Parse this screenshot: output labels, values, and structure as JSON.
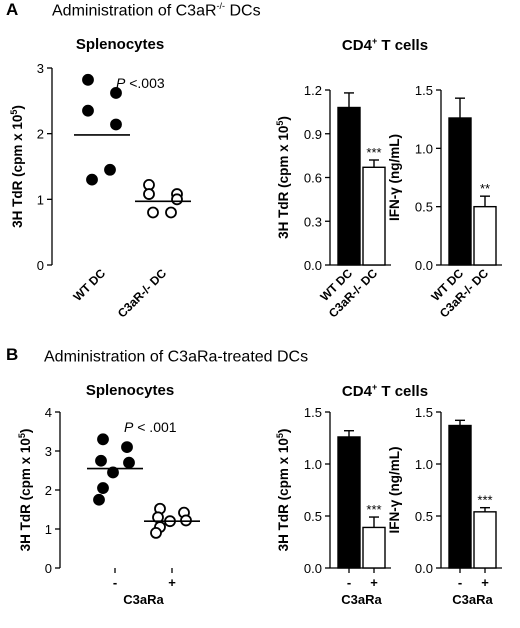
{
  "panels": [
    {
      "letter": "A",
      "title_main": "Administration of C3aR",
      "title_sup": "-/-",
      "title_end": " DCs",
      "left_title": "Splenocytes",
      "right_title_main": "CD4",
      "right_title_sup": "+",
      "right_title_end": " T cells"
    },
    {
      "letter": "B",
      "title_main": "Administration of C3aRa-treated DCs",
      "title_sup": "",
      "title_end": "",
      "left_title": "Splenocytes",
      "right_title_main": "CD4",
      "right_title_sup": "+",
      "right_title_end": " T cells"
    }
  ],
  "chart_data": [
    {
      "id": "A1",
      "type": "scatter",
      "panel": "A",
      "subtitle": "Splenocytes",
      "ylabel_main": "3H TdR (cpm x 10",
      "ylabel_sup": "5",
      "ylabel_end": ")",
      "ylim": [
        0,
        3
      ],
      "yticks": [
        "0",
        "1",
        "2",
        "3"
      ],
      "categories": [
        "WT DC",
        "C3aR-/- DC"
      ],
      "points": [
        [
          2.82,
          2.62,
          2.35,
          2.14,
          1.45,
          1.3
        ],
        [
          1.22,
          1.08,
          1.08,
          1.0,
          0.8,
          0.8
        ]
      ],
      "means": [
        1.98,
        0.97
      ],
      "annotation": "P <.003",
      "annotation_italic": "P",
      "annotation_rest": " <.003"
    },
    {
      "id": "A2",
      "type": "bar",
      "panel": "A",
      "ylabel_main": "3H TdR (cpm x 10",
      "ylabel_sup": "5",
      "ylabel_end": ")",
      "ylim": [
        0,
        1.2
      ],
      "yticks": [
        "0.0",
        "0.3",
        "0.6",
        "0.9",
        "1.2"
      ],
      "categories": [
        "WT DC",
        "C3aR-/- DC"
      ],
      "values": [
        1.08,
        0.67
      ],
      "errors": [
        0.1,
        0.05
      ],
      "fills": [
        "#000000",
        "#ffffff"
      ],
      "significance": [
        "",
        "***"
      ]
    },
    {
      "id": "A3",
      "type": "bar",
      "panel": "A",
      "ylabel_main": "IFN-γ (ng/mL)",
      "ylabel_sup": "",
      "ylabel_end": "",
      "ylim": [
        0,
        1.5
      ],
      "yticks": [
        "0.0",
        "0.5",
        "1.0",
        "1.5"
      ],
      "categories": [
        "WT DC",
        "C3aR-/- DC"
      ],
      "values": [
        1.26,
        0.5
      ],
      "errors": [
        0.17,
        0.09
      ],
      "fills": [
        "#000000",
        "#ffffff"
      ],
      "significance": [
        "",
        "**"
      ]
    },
    {
      "id": "B1",
      "type": "scatter",
      "panel": "B",
      "subtitle": "Splenocytes",
      "ylabel_main": "3H TdR (cpm x 10",
      "ylabel_sup": "5",
      "ylabel_end": ")",
      "ylim": [
        0,
        4
      ],
      "yticks": [
        "0",
        "1",
        "2",
        "3",
        "4"
      ],
      "categories": [
        "-",
        "+"
      ],
      "xlabel": "C3aRa",
      "points": [
        [
          3.3,
          3.1,
          2.75,
          2.7,
          2.45,
          2.05,
          1.75
        ],
        [
          1.52,
          1.42,
          1.3,
          1.22,
          1.2,
          1.05,
          0.9
        ]
      ],
      "means": [
        2.55,
        1.2
      ],
      "annotation": "P < .001",
      "annotation_italic": "P",
      "annotation_rest": " < .001"
    },
    {
      "id": "B2",
      "type": "bar",
      "panel": "B",
      "ylabel_main": "3H TdR (cpm x 10",
      "ylabel_sup": "5",
      "ylabel_end": ")",
      "ylim": [
        0,
        1.5
      ],
      "yticks": [
        "0.0",
        "0.5",
        "1.0",
        "1.5"
      ],
      "categories": [
        "-",
        "+"
      ],
      "xlabel": "C3aRa",
      "values": [
        1.26,
        0.39
      ],
      "errors": [
        0.06,
        0.1
      ],
      "fills": [
        "#000000",
        "#ffffff"
      ],
      "significance": [
        "",
        "***"
      ]
    },
    {
      "id": "B3",
      "type": "bar",
      "panel": "B",
      "ylabel_main": "IFN-γ (ng/mL)",
      "ylabel_sup": "",
      "ylabel_end": "",
      "ylim": [
        0,
        1.5
      ],
      "yticks": [
        "0.0",
        "0.5",
        "1.0",
        "1.5"
      ],
      "categories": [
        "-",
        "+"
      ],
      "xlabel": "C3aRa",
      "values": [
        1.37,
        0.54
      ],
      "errors": [
        0.05,
        0.04
      ],
      "fills": [
        "#000000",
        "#ffffff"
      ],
      "significance": [
        "",
        "***"
      ]
    }
  ]
}
